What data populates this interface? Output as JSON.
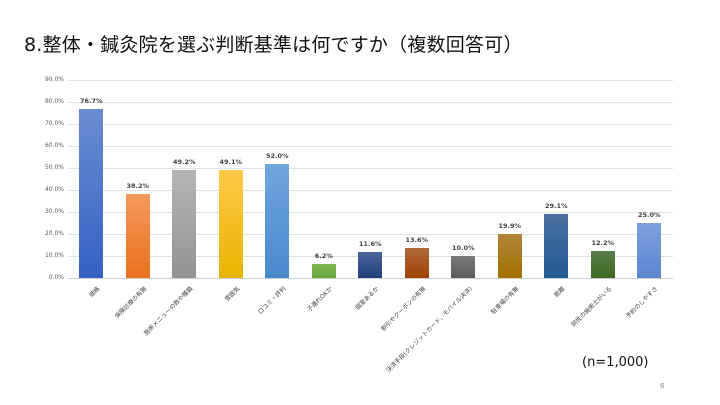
{
  "slide": {
    "title": "8.整体・鍼灸院を選ぶ判断基準は何ですか（複数回答可）",
    "sample_size": "(n=1,000)",
    "page_number": "6"
  },
  "chart_data": {
    "type": "bar",
    "title": "8.整体・鍼灸院を選ぶ判断基準は何ですか（複数回答可）",
    "xlabel": "",
    "ylabel": "",
    "ylim": [
      0,
      90
    ],
    "yticks": [
      "0.0%",
      "10.0%",
      "20.0%",
      "30.0%",
      "40.0%",
      "50.0%",
      "60.0%",
      "70.0%",
      "80.0%",
      "90.0%"
    ],
    "grid": true,
    "legend": "none",
    "categories": [
      "価格",
      "保険診療の有無",
      "施術メニューの数や種類",
      "雰囲気",
      "口コミ・評判",
      "子連れOKか",
      "個室あるか",
      "割引やクーポンの有無",
      "決済手段(クレジットカード、モバイル決済)",
      "駐車場の有無",
      "距離",
      "同性の施術士がいる",
      "予約のしやすさ"
    ],
    "values": [
      76.7,
      38.2,
      49.2,
      49.1,
      52.0,
      6.2,
      11.6,
      13.6,
      10.0,
      19.9,
      29.1,
      12.2,
      25.0
    ],
    "value_labels": [
      "76.7%",
      "38.2%",
      "49.2%",
      "49.1%",
      "52.0%",
      "6.2%",
      "11.6%",
      "13.6%",
      "10.0%",
      "19.9%",
      "29.1%",
      "12.2%",
      "25.0%"
    ],
    "colors": [
      [
        "#6a8ccf",
        "#3561c4"
      ],
      [
        "#f49a5c",
        "#e8711f"
      ],
      [
        "#b5b5b5",
        "#939393"
      ],
      [
        "#ffc94a",
        "#e8b400"
      ],
      [
        "#70a7de",
        "#4a88cc"
      ],
      [
        "#80b850",
        "#64a33a"
      ],
      [
        "#4d6699",
        "#203f7a"
      ],
      [
        "#b06a3c",
        "#9e4203"
      ],
      [
        "#7a7a7a",
        "#5c5c5c"
      ],
      [
        "#b0843a",
        "#a17200"
      ],
      [
        "#4a70a0",
        "#225a90"
      ],
      [
        "#5a7d4a",
        "#3d6a22"
      ],
      [
        "#7fa0de",
        "#5c86cf"
      ]
    ]
  }
}
